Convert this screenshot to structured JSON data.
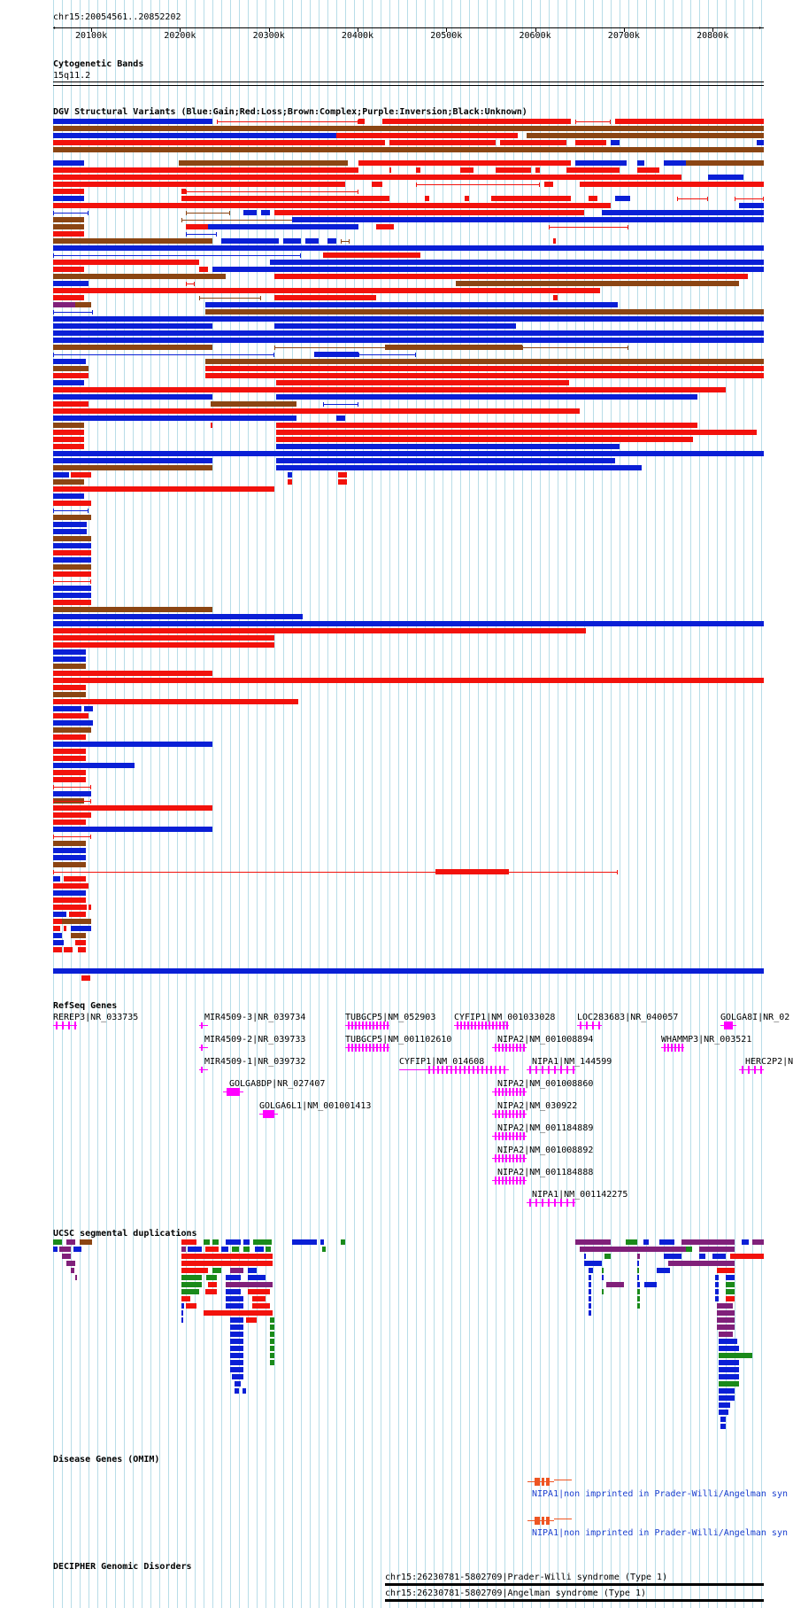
{
  "ruler": {
    "location": "chr15:20054561..20852202",
    "ticks": [
      "20100k",
      "20200k",
      "20300k",
      "20400k",
      "20500k",
      "20600k",
      "20700k",
      "20800k"
    ]
  },
  "tracks": {
    "cytoband": {
      "title": "Cytogenetic Bands",
      "band": "15q11.2"
    },
    "dgv": {
      "title": "DGV Structural Variants (Blue:Gain;Red:Loss;Brown:Complex;Purple:Inversion;Black:Unknown)"
    },
    "refseq": {
      "title": "RefSeq Genes"
    },
    "segdup": {
      "title": "UCSC segmental duplications"
    },
    "omim": {
      "title": "Disease Genes (OMIM)"
    },
    "decipher": {
      "title": "DECIPHER Genomic Disorders"
    }
  },
  "genes": [
    "REREP3|NR_033735",
    "MIR4509-3|NR_039734",
    "MIR4509-2|NR_039733",
    "MIR4509-1|NR_039732",
    "GOLGA8DP|NR_027407",
    "GOLGA6L1|NM_001001413",
    "TUBGCP5|NM_052903",
    "TUBGCP5|NM_001102610",
    "CYFIP1|NM_001033028",
    "CYFIP1|NM_014608",
    "NIPA2|NM_001008894",
    "NIPA1|NM_144599",
    "NIPA2|NM_001008860",
    "NIPA2|NM_030922",
    "NIPA2|NM_001184889",
    "NIPA2|NM_001008892",
    "NIPA2|NM_001184888",
    "NIPA1|NM_001142275",
    "LOC283683|NR_040057",
    "WHAMMP3|NR_003521",
    "GOLGA8I|NR_02",
    "HERC2P2|N"
  ],
  "omim": [
    "NIPA1|non imprinted in Prader-Willi/Angelman syn",
    "NIPA1|non imprinted in Prader-Willi/Angelman syn"
  ],
  "decipher": [
    "chr15:26230781-5802709|Prader-Willi syndrome (Type 1)",
    "chr15:26230781-5802709|Angelman syndrome (Type 1)"
  ],
  "colors": {
    "gain": "#0a1fd6",
    "loss": "#f2120c",
    "complex": "#8b4513",
    "inversion": "#80207a",
    "unknown": "#000000",
    "gene": "#ff00ff",
    "segdup_green": "#1a8a1a",
    "omim": "#ee5522",
    "gridline": "#b8dde8"
  }
}
